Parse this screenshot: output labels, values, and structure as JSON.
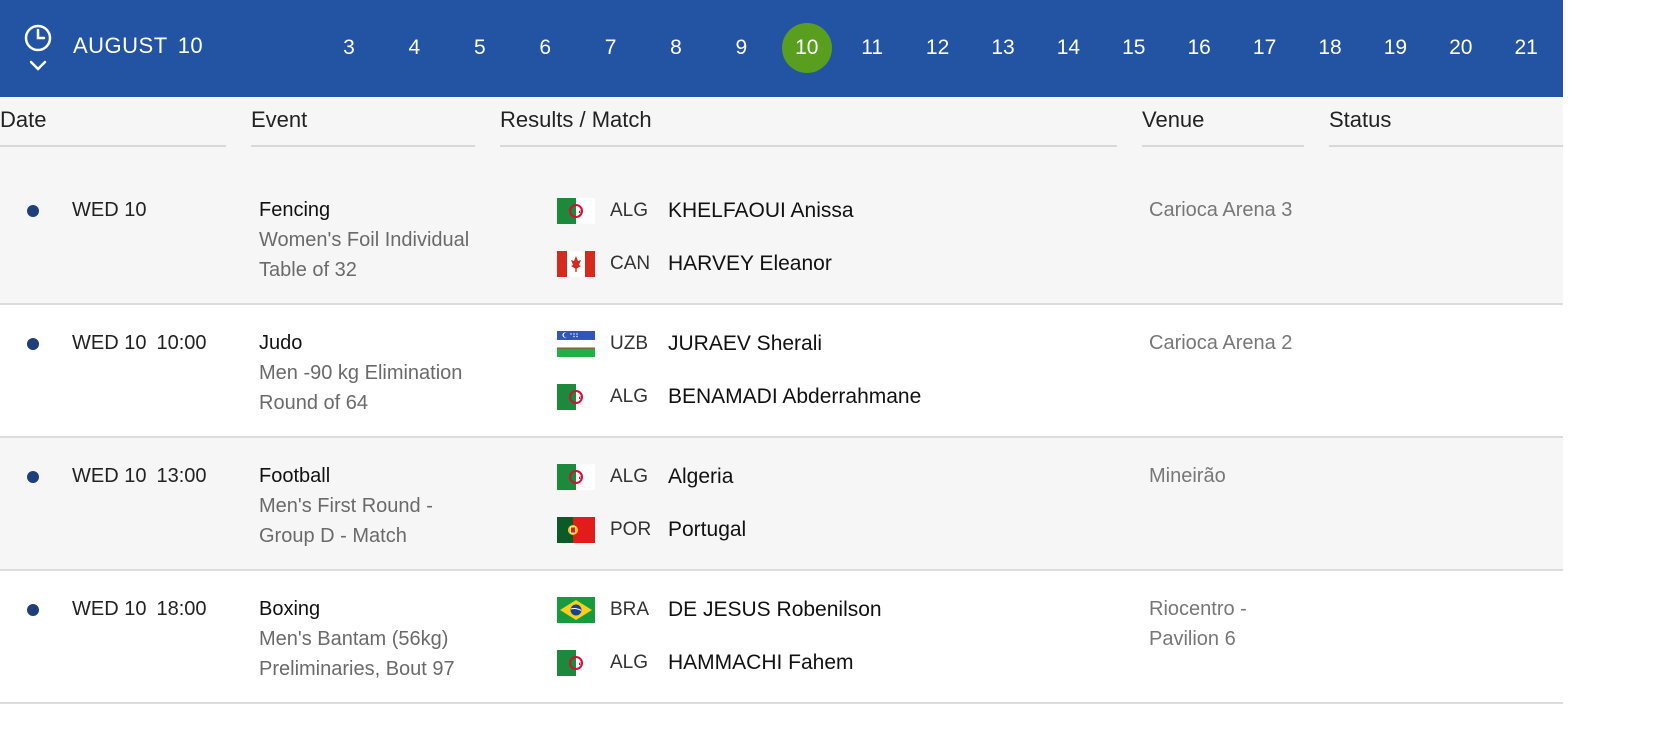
{
  "datebar": {
    "month": "AUGUST",
    "selected_day": "10",
    "days": [
      "3",
      "4",
      "5",
      "6",
      "7",
      "8",
      "9",
      "10",
      "11",
      "12",
      "13",
      "14",
      "15",
      "16",
      "17",
      "18",
      "19",
      "20",
      "21"
    ],
    "accent_color": "#2354a3",
    "active_color": "#5a9e1f"
  },
  "columns": {
    "date": "Date",
    "event": "Event",
    "results": "Results / Match",
    "venue": "Venue",
    "status": "Status"
  },
  "rows": [
    {
      "date": "WED 10",
      "time": "",
      "sport": "Fencing",
      "event_lines": [
        "Women's Foil Individual",
        "Table of 32"
      ],
      "competitors": [
        {
          "flag": "alg-flag",
          "code": "ALG",
          "name": "KHELFAOUI Anissa"
        },
        {
          "flag": "can-flag",
          "code": "CAN",
          "name": "HARVEY Eleanor"
        }
      ],
      "venue_lines": [
        "Carioca Arena 3"
      ]
    },
    {
      "date": "WED 10",
      "time": "10:00",
      "sport": "Judo",
      "event_lines": [
        "Men -90 kg Elimination",
        "Round of 64"
      ],
      "competitors": [
        {
          "flag": "uzb-flag",
          "code": "UZB",
          "name": "JURAEV Sherali"
        },
        {
          "flag": "alg-flag",
          "code": "ALG",
          "name": "BENAMADI Abderrahmane"
        }
      ],
      "venue_lines": [
        "Carioca Arena 2"
      ]
    },
    {
      "date": "WED 10",
      "time": "13:00",
      "sport": "Football",
      "event_lines": [
        "Men's First Round -",
        "Group D - Match"
      ],
      "competitors": [
        {
          "flag": "alg-flag",
          "code": "ALG",
          "name": "Algeria"
        },
        {
          "flag": "por-flag",
          "code": "POR",
          "name": "Portugal"
        }
      ],
      "venue_lines": [
        "Mineirão"
      ]
    },
    {
      "date": "WED 10",
      "time": "18:00",
      "sport": "Boxing",
      "event_lines": [
        "Men's Bantam (56kg)",
        "Preliminaries, Bout 97"
      ],
      "competitors": [
        {
          "flag": "bra-flag",
          "code": "BRA",
          "name": "DE JESUS Robenilson"
        },
        {
          "flag": "alg-flag",
          "code": "ALG",
          "name": "HAMMACHI Fahem"
        }
      ],
      "venue_lines": [
        "Riocentro -",
        "Pavilion 6"
      ]
    }
  ]
}
